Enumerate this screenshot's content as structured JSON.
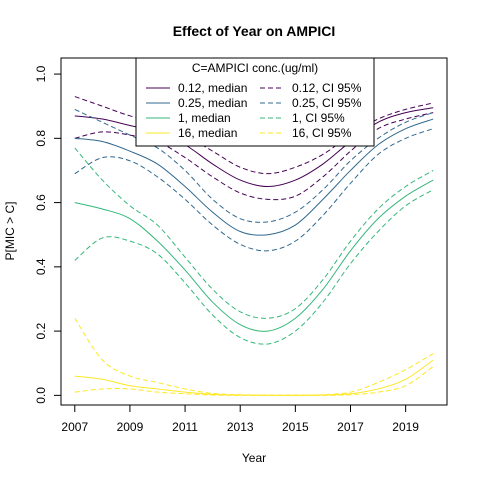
{
  "chart_data": {
    "type": "line",
    "title": "Effect of Year on AMPICI",
    "xlabel": "Year",
    "ylabel": "P[MIC > C]",
    "xlim": [
      2006.5,
      2020.5
    ],
    "ylim": [
      -0.03,
      1.05
    ],
    "x_ticks": [
      "2007",
      "2009",
      "2011",
      "2013",
      "2015",
      "2017",
      "2019"
    ],
    "y_ticks": [
      "0.0",
      "0.2",
      "0.4",
      "0.6",
      "0.8",
      "1.0"
    ],
    "grid": false,
    "legend": {
      "title": "C=AMPICI conc.(ug/ml)",
      "placement": "top-center",
      "entries": [
        {
          "label": "0.12, median",
          "color": "#440154",
          "dash": "solid"
        },
        {
          "label": "0.12, CI 95%",
          "color": "#440154",
          "dash": "dashed"
        },
        {
          "label": "0.25, median",
          "color": "#31688e",
          "dash": "solid"
        },
        {
          "label": "0.25, CI 95%",
          "color": "#31688e",
          "dash": "dashed"
        },
        {
          "label": "1, median",
          "color": "#35b779",
          "dash": "solid"
        },
        {
          "label": "1, CI 95%",
          "color": "#35b779",
          "dash": "dashed"
        },
        {
          "label": "16, median",
          "color": "#fde725",
          "dash": "solid"
        },
        {
          "label": "16, CI 95%",
          "color": "#fde725",
          "dash": "dashed"
        }
      ]
    },
    "x": [
      2007,
      2008,
      2009,
      2010,
      2011,
      2012,
      2013,
      2014,
      2015,
      2016,
      2017,
      2018,
      2019,
      2020
    ],
    "series": [
      {
        "concentration": "0.12",
        "kind": "median",
        "color": "#440154",
        "dash": "solid",
        "values": [
          0.87,
          0.86,
          0.84,
          0.82,
          0.78,
          0.72,
          0.67,
          0.65,
          0.67,
          0.72,
          0.79,
          0.85,
          0.88,
          0.895
        ]
      },
      {
        "concentration": "0.12",
        "kind": "upper",
        "color": "#440154",
        "dash": "dashed",
        "values": [
          0.93,
          0.9,
          0.87,
          0.85,
          0.81,
          0.76,
          0.71,
          0.69,
          0.71,
          0.75,
          0.81,
          0.86,
          0.89,
          0.91
        ]
      },
      {
        "concentration": "0.12",
        "kind": "lower",
        "color": "#440154",
        "dash": "dashed",
        "values": [
          0.8,
          0.82,
          0.81,
          0.79,
          0.74,
          0.68,
          0.63,
          0.61,
          0.62,
          0.68,
          0.76,
          0.83,
          0.86,
          0.88
        ]
      },
      {
        "concentration": "0.25",
        "kind": "median",
        "color": "#31688e",
        "dash": "solid",
        "values": [
          0.8,
          0.79,
          0.76,
          0.72,
          0.65,
          0.57,
          0.51,
          0.5,
          0.53,
          0.61,
          0.7,
          0.78,
          0.83,
          0.86
        ]
      },
      {
        "concentration": "0.25",
        "kind": "upper",
        "color": "#31688e",
        "dash": "dashed",
        "values": [
          0.89,
          0.85,
          0.81,
          0.77,
          0.7,
          0.61,
          0.55,
          0.54,
          0.57,
          0.64,
          0.73,
          0.8,
          0.85,
          0.88
        ]
      },
      {
        "concentration": "0.25",
        "kind": "lower",
        "color": "#31688e",
        "dash": "dashed",
        "values": [
          0.69,
          0.74,
          0.73,
          0.68,
          0.61,
          0.53,
          0.47,
          0.45,
          0.48,
          0.56,
          0.66,
          0.75,
          0.8,
          0.83
        ]
      },
      {
        "concentration": "1",
        "kind": "median",
        "color": "#35b779",
        "dash": "solid",
        "values": [
          0.6,
          0.58,
          0.55,
          0.48,
          0.39,
          0.29,
          0.22,
          0.2,
          0.24,
          0.33,
          0.45,
          0.55,
          0.62,
          0.67
        ]
      },
      {
        "concentration": "1",
        "kind": "upper",
        "color": "#35b779",
        "dash": "dashed",
        "values": [
          0.77,
          0.67,
          0.59,
          0.53,
          0.43,
          0.33,
          0.26,
          0.24,
          0.27,
          0.36,
          0.48,
          0.58,
          0.65,
          0.7
        ]
      },
      {
        "concentration": "1",
        "kind": "lower",
        "color": "#35b779",
        "dash": "dashed",
        "values": [
          0.42,
          0.49,
          0.48,
          0.44,
          0.35,
          0.25,
          0.18,
          0.16,
          0.2,
          0.29,
          0.41,
          0.51,
          0.59,
          0.64
        ]
      },
      {
        "concentration": "16",
        "kind": "median",
        "color": "#fde725",
        "dash": "solid",
        "values": [
          0.06,
          0.05,
          0.03,
          0.02,
          0.01,
          0.003,
          0.001,
          0.0,
          0.0,
          0.001,
          0.005,
          0.02,
          0.05,
          0.11
        ]
      },
      {
        "concentration": "16",
        "kind": "upper",
        "color": "#fde725",
        "dash": "dashed",
        "values": [
          0.24,
          0.11,
          0.06,
          0.04,
          0.02,
          0.006,
          0.002,
          0.001,
          0.001,
          0.002,
          0.01,
          0.04,
          0.08,
          0.13
        ]
      },
      {
        "concentration": "16",
        "kind": "lower",
        "color": "#fde725",
        "dash": "dashed",
        "values": [
          0.01,
          0.02,
          0.02,
          0.01,
          0.005,
          0.001,
          0.0,
          0.0,
          0.0,
          0.0,
          0.002,
          0.01,
          0.03,
          0.09
        ]
      }
    ]
  }
}
